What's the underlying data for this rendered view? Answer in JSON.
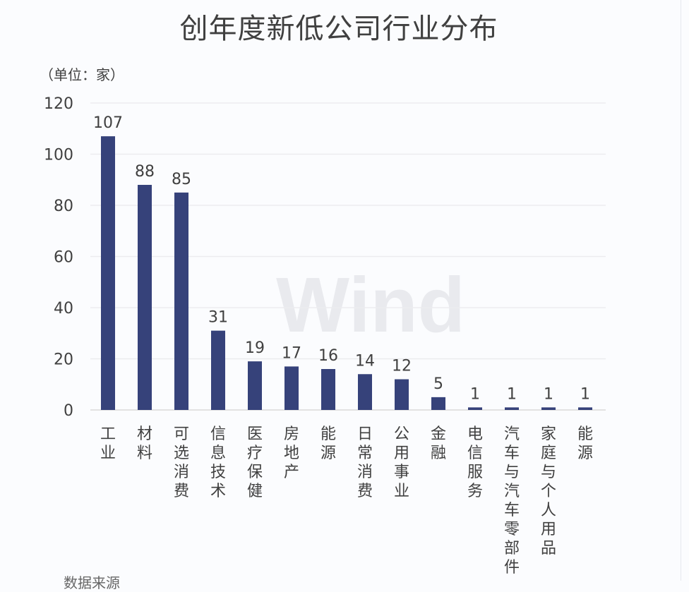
{
  "chart_data": {
    "type": "bar",
    "title": "创年度新低公司行业分布",
    "unit_label": "（单位：家）",
    "categories": [
      "工业",
      "材料",
      "可选消费",
      "信息技术",
      "医疗保健",
      "房地产",
      "能源",
      "日常消费",
      "公用事业",
      "金融",
      "电信服务",
      "汽车与汽车零部件",
      "家庭与个人用品",
      "能源"
    ],
    "values": [
      107,
      88,
      85,
      31,
      19,
      17,
      16,
      14,
      12,
      5,
      1,
      1,
      1,
      1
    ],
    "ylim": [
      0,
      120
    ],
    "yticks": [
      0,
      20,
      40,
      60,
      80,
      100,
      120
    ],
    "grid": true,
    "bar_color": "#36427a",
    "watermark": "Wind",
    "source_partial": "数据来源"
  }
}
